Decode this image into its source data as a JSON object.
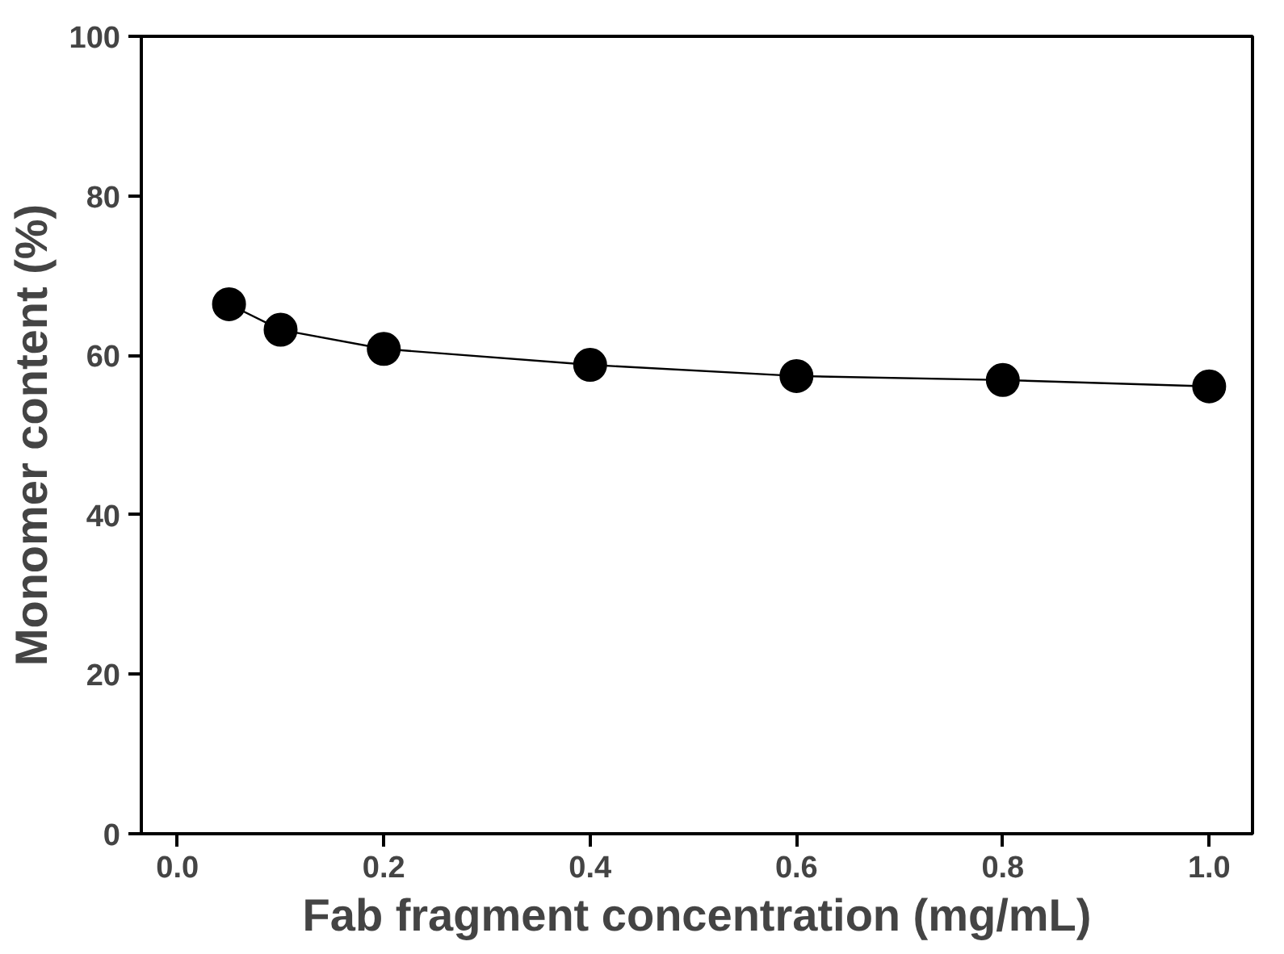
{
  "chart_data": {
    "type": "line",
    "xlabel": "Fab fragment concentration (mg/mL)",
    "ylabel": "Monomer content (%)",
    "x": [
      0.05,
      0.1,
      0.2,
      0.4,
      0.6,
      0.8,
      1.0
    ],
    "series": [
      {
        "color": "#000000",
        "values": [
          66.4,
          63.2,
          60.8,
          58.8,
          57.4,
          56.9,
          56.1
        ]
      }
    ],
    "marker": "circle",
    "line_style": "solid",
    "grid": false,
    "xlim": [
      -0.035,
      1.042
    ],
    "ylim": [
      0,
      100
    ],
    "xticks": [
      {
        "value": 0,
        "label": "0.0"
      },
      0.2,
      0.4,
      0.6,
      0.8,
      {
        "value": 1,
        "label": "1.0"
      }
    ],
    "yticks": [
      0,
      20,
      40,
      60,
      80,
      100
    ]
  }
}
